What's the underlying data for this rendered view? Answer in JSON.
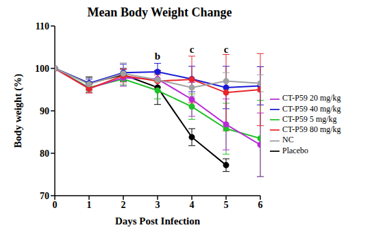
{
  "chart_data": {
    "type": "line",
    "title": "Mean Body Weight Change",
    "x_label": "Days Post Infection",
    "y_label": "Body weight (%)",
    "x": [
      0,
      1,
      2,
      3,
      4,
      5,
      6
    ],
    "xlim": [
      0,
      6
    ],
    "xticks": [
      0,
      1,
      2,
      3,
      4,
      5,
      6
    ],
    "ylim": [
      70,
      110
    ],
    "yticks": [
      70,
      80,
      90,
      100,
      110
    ],
    "legend": "right",
    "marker": "circle",
    "series": [
      {
        "name": "Placebo",
        "color": "#000000",
        "values": [
          100,
          96.5,
          98.5,
          95.5,
          83.8,
          77.2,
          null
        ],
        "errors": [
          0,
          1.5,
          1.5,
          4,
          2,
          1.5,
          null
        ]
      },
      {
        "name": "CT-P59 5 mg/kg",
        "color": "#22c02a",
        "values": [
          100,
          95.5,
          97.5,
          94.8,
          91,
          85.8,
          83.5
        ],
        "errors": [
          0,
          1,
          1.5,
          2,
          3,
          6,
          9
        ]
      },
      {
        "name": "CT-P59 20 mg/kg",
        "color": "#b82bd6",
        "values": [
          100,
          95.3,
          97.8,
          97.5,
          92.7,
          86.8,
          82
        ],
        "errors": [
          0,
          1,
          2,
          2,
          4,
          6,
          7.5
        ]
      },
      {
        "name": "CT-P59 40 mg/kg",
        "color": "#1a1ad6",
        "values": [
          100,
          96.5,
          99,
          99.2,
          97.5,
          95.5,
          95.9
        ],
        "errors": [
          0,
          1,
          2,
          2,
          3,
          5,
          4.5
        ]
      },
      {
        "name": "CT-P59 80 mg/kg",
        "color": "#e8262a",
        "values": [
          100,
          95.2,
          98.3,
          97,
          97.4,
          94.3,
          95
        ],
        "errors": [
          0,
          1,
          1.5,
          1.5,
          5.5,
          9,
          8.5
        ]
      },
      {
        "name": "NC",
        "color": "#a0a0a0",
        "values": [
          100,
          96.3,
          98.8,
          97.3,
          95.5,
          97,
          96.5
        ],
        "errors": [
          0,
          1.5,
          2.5,
          1.5,
          2,
          2,
          2
        ]
      }
    ],
    "annotations": [
      {
        "text": "b",
        "x": 3,
        "y": 103
      },
      {
        "text": "c",
        "x": 4,
        "y": 104.5
      },
      {
        "text": "c",
        "x": 5,
        "y": 104.5
      }
    ]
  }
}
